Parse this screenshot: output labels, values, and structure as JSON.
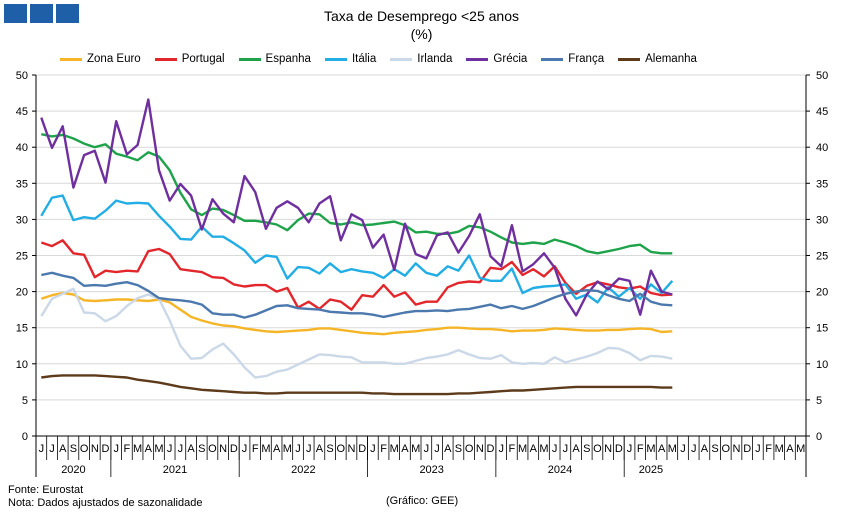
{
  "header": {
    "logo_color": "#1f5fa8"
  },
  "footer": {
    "source": "Fonte: Eurostat",
    "note": "Nota: Dados ajustados de sazonalidade",
    "credit": "(Gráfico: GEE)"
  },
  "chart_data": {
    "type": "line",
    "title": "Taxa de Desemprego <25 anos",
    "subtitle": "(%)",
    "ylim": [
      0,
      50
    ],
    "y_ticks": [
      0,
      5,
      10,
      15,
      20,
      25,
      30,
      35,
      40,
      45,
      50
    ],
    "grid": true,
    "legend_position": "top",
    "month_labels": [
      "J",
      "J",
      "A",
      "S",
      "O",
      "N",
      "D",
      "J",
      "F",
      "M",
      "A",
      "M",
      "J",
      "J",
      "A",
      "S",
      "O",
      "N",
      "D",
      "J",
      "F",
      "M",
      "A",
      "M",
      "J",
      "J",
      "A",
      "S",
      "O",
      "N",
      "D",
      "J",
      "F",
      "M",
      "A",
      "M",
      "J",
      "J",
      "A",
      "S",
      "O",
      "N",
      "D",
      "J",
      "F",
      "M",
      "A",
      "M",
      "J",
      "J",
      "A",
      "S",
      "O",
      "N",
      "D",
      "J",
      "F",
      "M",
      "A",
      "M",
      "J",
      "J",
      "A",
      "S",
      "O",
      "N",
      "D",
      "J",
      "F",
      "M",
      "A",
      "M"
    ],
    "year_groups": [
      {
        "label": "2020",
        "start": 0,
        "end": 6
      },
      {
        "label": "2021",
        "start": 7,
        "end": 18
      },
      {
        "label": "2022",
        "start": 19,
        "end": 30
      },
      {
        "label": "2023",
        "start": 31,
        "end": 42
      },
      {
        "label": "2024",
        "start": 43,
        "end": 54
      },
      {
        "label": "2025",
        "start": 55,
        "end": 59
      }
    ],
    "series": [
      {
        "name": "Zona Euro",
        "color": "#f5b526",
        "values": [
          19.0,
          19.5,
          19.8,
          19.6,
          18.8,
          18.7,
          18.8,
          18.9,
          18.9,
          18.8,
          18.7,
          18.9,
          18.5,
          17.5,
          16.5,
          16.0,
          15.6,
          15.3,
          15.2,
          14.9,
          14.7,
          14.5,
          14.4,
          14.5,
          14.6,
          14.7,
          14.9,
          14.9,
          14.7,
          14.5,
          14.3,
          14.2,
          14.1,
          14.3,
          14.4,
          14.5,
          14.7,
          14.8,
          15.0,
          15.0,
          14.9,
          14.8,
          14.8,
          14.7,
          14.5,
          14.6,
          14.6,
          14.7,
          14.9,
          14.8,
          14.7,
          14.6,
          14.6,
          14.7,
          14.7,
          14.8,
          14.9,
          14.8,
          14.4,
          14.5
        ]
      },
      {
        "name": "Portugal",
        "color": "#e3262b",
        "values": [
          26.8,
          26.3,
          27.1,
          25.3,
          25.1,
          22.0,
          22.9,
          22.7,
          22.9,
          22.8,
          25.6,
          25.9,
          25.2,
          23.1,
          22.9,
          22.7,
          22.0,
          21.9,
          21.0,
          20.7,
          20.9,
          20.9,
          20.0,
          20.5,
          17.8,
          18.6,
          17.6,
          18.9,
          18.6,
          17.5,
          19.5,
          19.3,
          20.9,
          19.3,
          19.9,
          18.2,
          18.6,
          18.6,
          20.6,
          21.2,
          21.4,
          21.3,
          23.3,
          23.1,
          24.1,
          22.3,
          23.1,
          22.1,
          23.5,
          21.2,
          19.7,
          20.8,
          21.3,
          21.0,
          20.6,
          20.4,
          20.7,
          19.8,
          19.5,
          19.6
        ]
      },
      {
        "name": "Espanha",
        "color": "#1ea34a",
        "values": [
          41.8,
          41.5,
          41.7,
          41.2,
          40.5,
          40.0,
          40.4,
          39.1,
          38.7,
          38.2,
          39.3,
          38.7,
          36.8,
          33.7,
          31.4,
          30.6,
          31.5,
          31.3,
          30.6,
          29.8,
          29.8,
          29.6,
          29.3,
          28.5,
          29.9,
          30.8,
          30.7,
          29.5,
          29.3,
          29.6,
          29.2,
          29.3,
          29.5,
          29.7,
          29.2,
          28.2,
          28.3,
          28.0,
          28.0,
          28.3,
          29.1,
          28.9,
          28.3,
          27.5,
          26.8,
          26.6,
          26.8,
          26.6,
          27.2,
          26.8,
          26.3,
          25.6,
          25.3,
          25.6,
          25.9,
          26.3,
          26.5,
          25.5,
          25.3,
          25.3
        ]
      },
      {
        "name": "Itália",
        "color": "#22aee4",
        "values": [
          30.5,
          33.0,
          33.3,
          29.9,
          30.3,
          30.1,
          31.2,
          32.6,
          32.2,
          32.3,
          32.2,
          30.5,
          29.0,
          27.3,
          27.2,
          29.0,
          27.6,
          27.6,
          26.7,
          25.7,
          24.0,
          25.0,
          24.8,
          21.8,
          23.4,
          23.3,
          22.5,
          23.9,
          22.7,
          23.1,
          22.8,
          22.6,
          21.9,
          23.1,
          22.2,
          23.9,
          22.6,
          22.2,
          23.5,
          22.9,
          25.0,
          21.9,
          21.5,
          21.5,
          23.2,
          19.8,
          20.5,
          20.7,
          20.8,
          21.0,
          19.0,
          19.6,
          18.5,
          20.6,
          19.3,
          20.5,
          19.0,
          21.0,
          19.8,
          21.5
        ]
      },
      {
        "name": "Irlanda",
        "color": "#cbd8e7",
        "values": [
          16.6,
          19.0,
          19.7,
          20.4,
          17.1,
          17.0,
          15.9,
          16.6,
          18.0,
          19.1,
          19.6,
          19.0,
          16.0,
          12.5,
          10.7,
          10.8,
          12.0,
          12.8,
          11.3,
          9.5,
          8.1,
          8.3,
          8.9,
          9.2,
          9.9,
          10.6,
          11.3,
          11.2,
          11.0,
          10.9,
          10.2,
          10.2,
          10.2,
          10.0,
          10.0,
          10.4,
          10.8,
          11.0,
          11.3,
          11.9,
          11.3,
          10.8,
          10.7,
          11.2,
          10.2,
          10.0,
          10.1,
          10.0,
          10.9,
          10.2,
          10.6,
          11.0,
          11.5,
          12.2,
          12.1,
          11.5,
          10.5,
          11.1,
          11.0,
          10.7
        ]
      },
      {
        "name": "Grécia",
        "color": "#6f2f9e",
        "values": [
          44.1,
          39.9,
          42.9,
          34.4,
          38.9,
          39.5,
          35.1,
          43.6,
          39.0,
          40.3,
          46.6,
          36.8,
          32.6,
          34.9,
          33.3,
          28.6,
          32.8,
          30.8,
          29.6,
          36.0,
          33.8,
          28.7,
          31.6,
          32.5,
          31.6,
          29.6,
          32.2,
          33.2,
          27.1,
          30.7,
          29.9,
          26.1,
          27.9,
          23.0,
          29.4,
          25.2,
          24.6,
          27.8,
          28.2,
          25.4,
          27.7,
          30.7,
          24.9,
          23.5,
          29.2,
          22.8,
          23.8,
          25.3,
          23.3,
          19.0,
          16.7,
          19.6,
          21.4,
          20.3,
          21.8,
          21.5,
          16.8,
          22.9,
          20.0,
          19.6
        ]
      },
      {
        "name": "França",
        "color": "#4b78ad",
        "values": [
          22.3,
          22.6,
          22.2,
          21.9,
          20.8,
          20.9,
          20.8,
          21.1,
          21.3,
          20.9,
          20.1,
          19.1,
          18.9,
          18.8,
          18.6,
          18.2,
          17.0,
          16.8,
          16.8,
          16.4,
          16.8,
          17.4,
          18.0,
          18.1,
          17.7,
          17.6,
          17.5,
          17.2,
          17.1,
          17.0,
          17.0,
          16.8,
          16.5,
          16.8,
          17.1,
          17.3,
          17.3,
          17.4,
          17.3,
          17.5,
          17.6,
          17.9,
          18.2,
          17.7,
          18.0,
          17.6,
          18.0,
          18.6,
          19.2,
          19.7,
          20.0,
          20.2,
          20.1,
          19.5,
          19.0,
          18.7,
          19.7,
          18.6,
          18.2,
          18.1
        ]
      },
      {
        "name": "Alemanha",
        "color": "#5c3a1a",
        "values": [
          8.1,
          8.3,
          8.4,
          8.4,
          8.4,
          8.4,
          8.3,
          8.2,
          8.1,
          7.8,
          7.6,
          7.4,
          7.1,
          6.8,
          6.6,
          6.4,
          6.3,
          6.2,
          6.1,
          6.0,
          6.0,
          5.9,
          5.9,
          6.0,
          6.0,
          6.0,
          6.0,
          6.0,
          6.0,
          6.0,
          6.0,
          5.9,
          5.9,
          5.8,
          5.8,
          5.8,
          5.8,
          5.8,
          5.8,
          5.9,
          5.9,
          6.0,
          6.1,
          6.2,
          6.3,
          6.3,
          6.4,
          6.5,
          6.6,
          6.7,
          6.8,
          6.8,
          6.8,
          6.8,
          6.8,
          6.8,
          6.8,
          6.8,
          6.7,
          6.7
        ]
      }
    ]
  }
}
